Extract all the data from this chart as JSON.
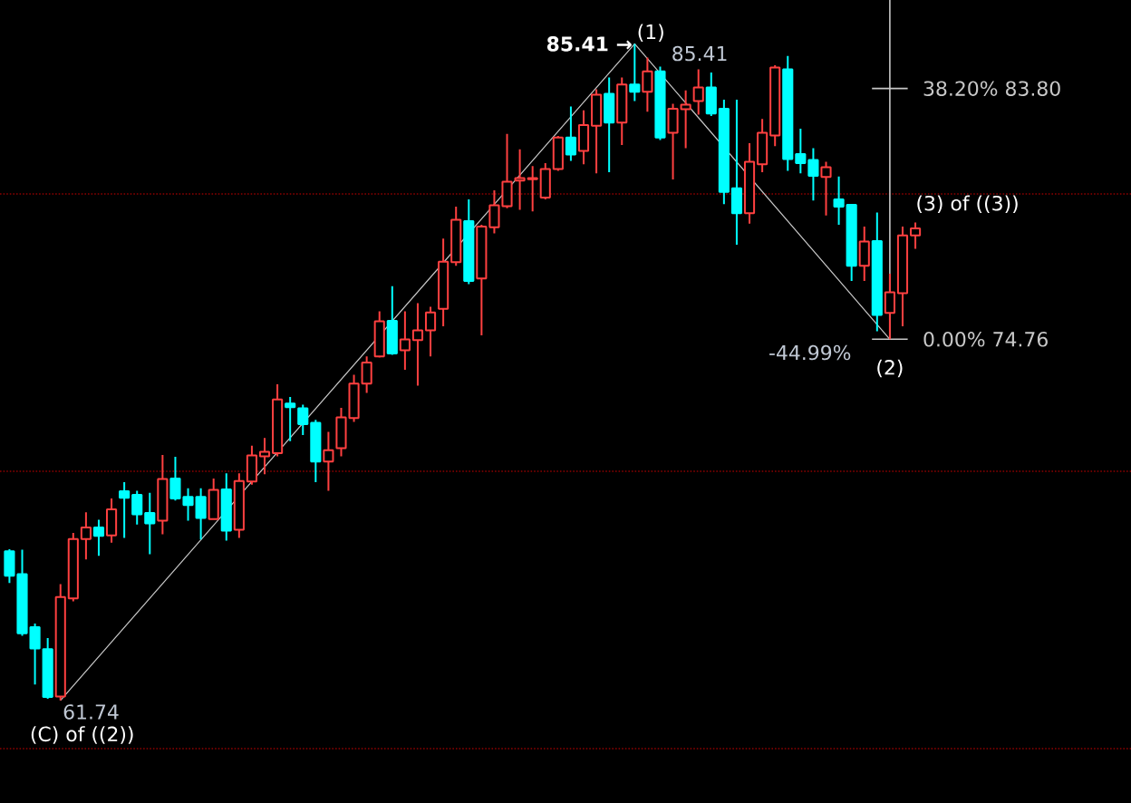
{
  "chart_data": {
    "type": "candlestick",
    "categories": [
      null,
      null,
      null,
      null,
      null,
      null,
      null,
      null,
      null,
      null,
      null,
      null,
      null,
      null,
      null,
      null,
      null,
      null,
      null,
      null,
      null,
      null,
      null,
      null,
      null,
      null,
      null,
      null,
      null,
      null,
      null,
      null,
      null,
      null,
      null,
      null,
      null,
      null,
      null,
      null,
      null,
      null,
      null,
      null,
      null,
      null,
      null,
      null,
      null,
      null,
      null,
      null,
      null,
      null,
      null,
      null,
      null,
      null,
      null,
      null,
      null,
      null,
      null,
      null,
      null,
      null,
      null,
      null,
      null,
      null,
      null,
      null
    ],
    "ohlc": [
      [
        67.12,
        67.19,
        65.97,
        66.23
      ],
      [
        66.29,
        67.17,
        64.07,
        64.16
      ],
      [
        64.38,
        64.51,
        62.31,
        63.61
      ],
      [
        63.59,
        63.99,
        61.8,
        61.86
      ],
      [
        61.88,
        65.93,
        61.74,
        65.47
      ],
      [
        65.42,
        67.78,
        65.31,
        67.56
      ],
      [
        67.56,
        68.52,
        66.82,
        67.97
      ],
      [
        67.97,
        68.25,
        66.95,
        67.67
      ],
      [
        67.69,
        69.02,
        67.43,
        68.63
      ],
      [
        69.28,
        69.61,
        67.6,
        69.04
      ],
      [
        69.15,
        69.3,
        68.08,
        68.45
      ],
      [
        68.5,
        69.22,
        67.01,
        68.12
      ],
      [
        68.22,
        70.59,
        67.73,
        69.72
      ],
      [
        69.74,
        70.52,
        68.95,
        69.02
      ],
      [
        69.08,
        69.39,
        68.22,
        68.78
      ],
      [
        69.08,
        69.39,
        67.54,
        68.32
      ],
      [
        68.28,
        69.74,
        68.24,
        69.33
      ],
      [
        69.35,
        69.93,
        67.5,
        67.86
      ],
      [
        67.89,
        69.93,
        67.6,
        69.65
      ],
      [
        69.63,
        70.92,
        69.52,
        70.57
      ],
      [
        70.54,
        71.2,
        69.89,
        70.7
      ],
      [
        70.65,
        73.14,
        70.54,
        72.59
      ],
      [
        72.44,
        72.68,
        71.09,
        72.31
      ],
      [
        72.27,
        72.4,
        71.31,
        71.7
      ],
      [
        71.75,
        71.85,
        69.61,
        70.35
      ],
      [
        70.35,
        71.42,
        69.3,
        70.76
      ],
      [
        70.83,
        72.29,
        70.54,
        71.94
      ],
      [
        71.92,
        73.48,
        71.78,
        73.16
      ],
      [
        73.16,
        74.14,
        72.83,
        73.92
      ],
      [
        74.14,
        75.77,
        74.1,
        75.41
      ],
      [
        75.42,
        76.67,
        74.2,
        74.25
      ],
      [
        74.36,
        75.77,
        73.66,
        74.75
      ],
      [
        74.73,
        76.06,
        73.09,
        75.08
      ],
      [
        75.08,
        75.93,
        74.14,
        75.73
      ],
      [
        75.86,
        78.39,
        75.23,
        77.56
      ],
      [
        77.54,
        79.54,
        77.41,
        79.07
      ],
      [
        79.02,
        79.8,
        76.75,
        76.86
      ],
      [
        76.95,
        78.89,
        74.9,
        78.82
      ],
      [
        78.8,
        80.13,
        78.58,
        79.59
      ],
      [
        79.56,
        82.16,
        79.48,
        80.44
      ],
      [
        80.48,
        81.61,
        79.43,
        80.57
      ],
      [
        80.53,
        81.0,
        79.37,
        80.57
      ],
      [
        79.87,
        81.11,
        79.8,
        80.9
      ],
      [
        80.9,
        82.09,
        80.83,
        82.03
      ],
      [
        82.03,
        83.15,
        81.19,
        81.42
      ],
      [
        81.55,
        83.01,
        81.07,
        82.48
      ],
      [
        82.46,
        83.77,
        80.74,
        83.58
      ],
      [
        83.61,
        84.2,
        80.78,
        82.57
      ],
      [
        82.57,
        84.2,
        81.76,
        83.94
      ],
      [
        83.94,
        85.41,
        83.35,
        83.68
      ],
      [
        83.68,
        84.92,
        82.96,
        84.42
      ],
      [
        84.42,
        84.59,
        81.94,
        82.03
      ],
      [
        82.2,
        83.25,
        80.52,
        83.07
      ],
      [
        83.05,
        83.73,
        81.65,
        83.22
      ],
      [
        83.35,
        84.49,
        82.86,
        83.84
      ],
      [
        83.84,
        84.38,
        82.81,
        82.9
      ],
      [
        83.07,
        83.4,
        79.63,
        80.07
      ],
      [
        80.2,
        83.4,
        78.17,
        79.3
      ],
      [
        79.3,
        81.83,
        78.93,
        81.16
      ],
      [
        81.07,
        82.7,
        80.78,
        82.2
      ],
      [
        82.11,
        84.64,
        81.72,
        84.56
      ],
      [
        84.49,
        84.97,
        80.83,
        81.26
      ],
      [
        81.44,
        82.35,
        80.74,
        81.11
      ],
      [
        81.22,
        81.65,
        79.76,
        80.65
      ],
      [
        80.61,
        81.16,
        79.22,
        80.96
      ],
      [
        79.8,
        80.63,
        78.89,
        79.54
      ],
      [
        79.61,
        79.63,
        76.86,
        77.41
      ],
      [
        77.41,
        78.82,
        76.86,
        78.28
      ],
      [
        78.3,
        79.33,
        75.05,
        75.64
      ],
      [
        75.71,
        77.12,
        74.76,
        76.45
      ],
      [
        76.42,
        78.82,
        75.23,
        78.5
      ],
      [
        78.5,
        78.97,
        78.02,
        78.76
      ]
    ],
    "colors": [
      "#00ffff",
      "#00ffff",
      "#00ffff",
      "#00ffff",
      "#ff4040",
      "#ff4040",
      "#ff4040",
      "#00ffff",
      "#ff4040",
      "#00ffff",
      "#00ffff",
      "#00ffff",
      "#ff4040",
      "#00ffff",
      "#00ffff",
      "#00ffff",
      "#ff4040",
      "#00ffff",
      "#ff4040",
      "#ff4040",
      "#ff4040",
      "#ff4040",
      "#00ffff",
      "#00ffff",
      "#00ffff",
      "#ff4040",
      "#ff4040",
      "#ff4040",
      "#ff4040",
      "#ff4040",
      "#00ffff",
      "#ff4040",
      "#ff4040",
      "#ff4040",
      "#ff4040",
      "#ff4040",
      "#00ffff",
      "#ff4040",
      "#ff4040",
      "#ff4040",
      "#ff4040",
      "#ff4040",
      "#ff4040",
      "#ff4040",
      "#00ffff",
      "#ff4040",
      "#ff4040",
      "#00ffff",
      "#ff4040",
      "#00ffff",
      "#ff4040",
      "#00ffff",
      "#ff4040",
      "#ff4040",
      "#ff4040",
      "#00ffff",
      "#00ffff",
      "#00ffff",
      "#ff4040",
      "#ff4040",
      "#ff4040",
      "#00ffff",
      "#00ffff",
      "#00ffff",
      "#ff4040",
      "#00ffff",
      "#00ffff",
      "#ff4040",
      "#00ffff",
      "#ff4040",
      "#ff4040",
      "#ff4040"
    ],
    "series": [
      {
        "type": "line",
        "color": "#c8c8c8",
        "values": [
          null,
          null,
          null,
          null,
          61.74,
          null,
          null,
          null,
          null,
          null,
          null,
          null,
          null,
          null,
          null,
          null,
          null,
          null,
          null,
          null,
          null,
          null,
          null,
          null,
          null,
          null,
          null,
          null,
          null,
          null,
          null,
          null,
          null,
          null,
          null,
          null,
          null,
          null,
          null,
          null,
          null,
          null,
          null,
          null,
          null,
          null,
          null,
          null,
          null,
          85.41,
          null,
          null,
          null,
          null,
          null,
          null,
          null,
          null,
          null,
          null,
          null,
          null,
          null,
          null,
          null,
          null,
          null,
          null,
          null,
          74.76,
          null,
          null
        ]
      }
    ],
    "ref_lines": [
      {
        "axis": "y",
        "value": 60,
        "color": "#8c0000",
        "line_style": "dotted"
      },
      {
        "axis": "y",
        "value": 70,
        "color": "#8c0000",
        "line_style": "dotted"
      },
      {
        "axis": "y",
        "value": 80,
        "color": "#8c0000",
        "line_style": "dotted"
      },
      {
        "axis": "y",
        "value": 83.8,
        "label": "38.20% 83.80",
        "color": "#c8c8c8"
      },
      {
        "axis": "y",
        "value": 74.76,
        "label": "0.00% 74.76",
        "color": "#c8c8c8"
      }
    ],
    "annotations": [
      "85.41 →",
      "(1)",
      "85.41",
      "61.74",
      "(C) of ((2))",
      "-44.99%",
      "(2)",
      "(3) of ((3))"
    ]
  }
}
